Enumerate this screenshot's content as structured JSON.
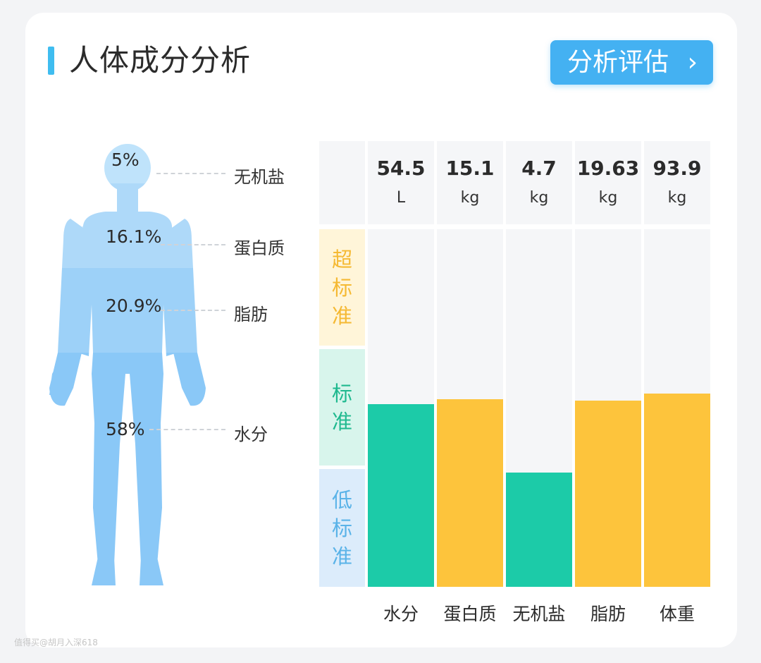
{
  "header": {
    "title": "人体成分分析",
    "eval_button": "分析评估",
    "eval_chevron": "›"
  },
  "body_figure": {
    "components": [
      {
        "name": "无机盐",
        "percent": "5%"
      },
      {
        "name": "蛋白质",
        "percent": "16.1%"
      },
      {
        "name": "脂肪",
        "percent": "20.9%"
      },
      {
        "name": "水分",
        "percent": "58%"
      }
    ]
  },
  "colors": {
    "accent": "#3fbdf0",
    "standard": "#1ccba8",
    "over": "#fdc43c",
    "low_text": "#5ab3e8",
    "over_text": "#f5b933",
    "standard_text": "#1fb98f"
  },
  "chart_data": {
    "type": "bar",
    "categories": [
      "水分",
      "蛋白质",
      "无机盐",
      "脂肪",
      "体重"
    ],
    "values": [
      54.5,
      15.1,
      4.7,
      19.63,
      93.9
    ],
    "value_labels": [
      "54.5",
      "15.1",
      "4.7",
      "19.63",
      "93.9"
    ],
    "units": [
      "L",
      "kg",
      "kg",
      "kg",
      "kg"
    ],
    "level_positions": [
      0.51,
      0.525,
      0.32,
      0.52,
      0.54
    ],
    "status": [
      "standard",
      "over",
      "standard",
      "over",
      "over"
    ],
    "bands": [
      {
        "key": "over",
        "label": "超标准"
      },
      {
        "key": "standard",
        "label": "标准"
      },
      {
        "key": "low",
        "label": "低标准"
      }
    ]
  },
  "watermark": "值得买@胡月入深618"
}
